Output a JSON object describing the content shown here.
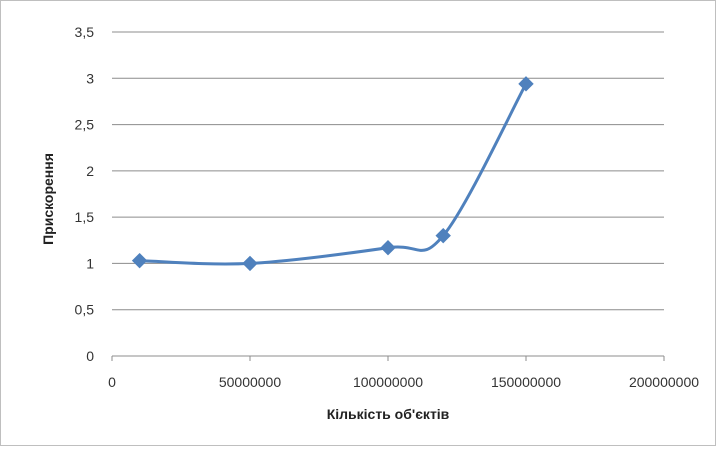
{
  "chart_data": {
    "type": "line",
    "title": "",
    "xlabel": "Кількість об'єктів",
    "ylabel": "Прискорення",
    "xlim": [
      0,
      200000000
    ],
    "ylim": [
      0,
      3.5
    ],
    "x_ticks": [
      0,
      50000000,
      100000000,
      150000000,
      200000000
    ],
    "x_tick_labels": [
      "0",
      "50000000",
      "100000000",
      "150000000",
      "200000000"
    ],
    "y_ticks": [
      0,
      0.5,
      1,
      1.5,
      2,
      2.5,
      3,
      3.5
    ],
    "y_tick_labels": [
      "0",
      "0,5",
      "1",
      "1,5",
      "2",
      "2,5",
      "3",
      "3,5"
    ],
    "grid": "horizontal",
    "smooth": true,
    "marker": "diamond",
    "color": "#4f81bd",
    "series": [
      {
        "x": [
          10000000,
          50000000,
          100000000,
          120000000,
          150000000
        ],
        "values": [
          1.03,
          1.0,
          1.17,
          1.3,
          2.94
        ]
      }
    ]
  }
}
